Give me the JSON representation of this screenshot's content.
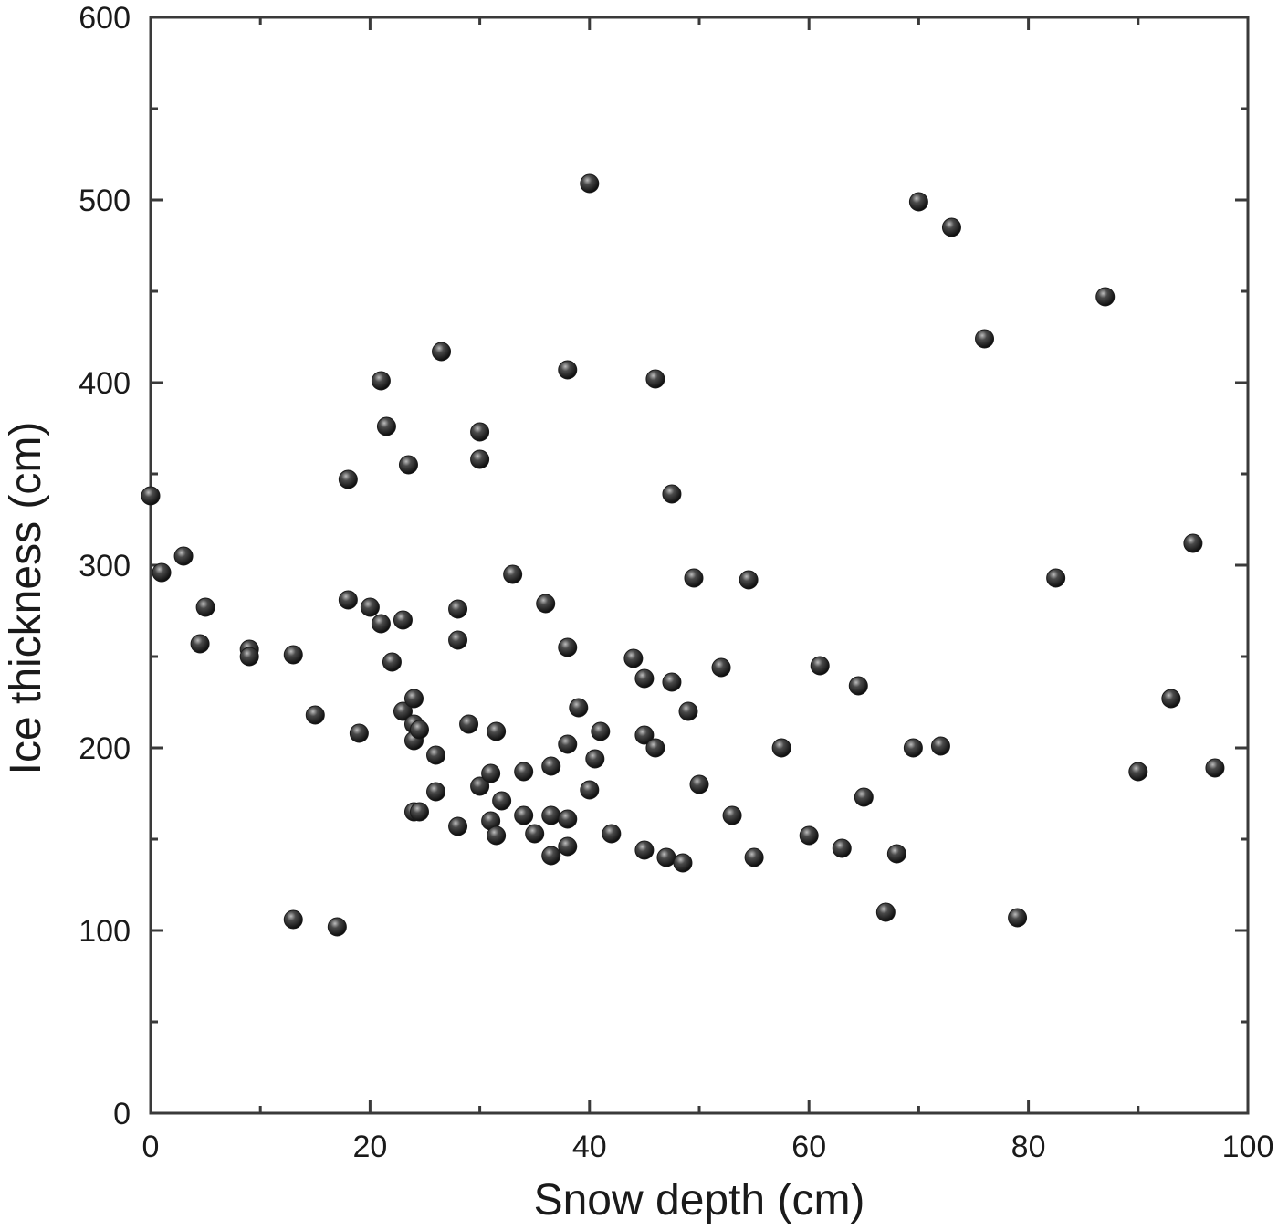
{
  "chart_data": {
    "type": "scatter",
    "title": "",
    "xlabel": "Snow depth (cm)",
    "ylabel": "Ice thickness (cm)",
    "xlim": [
      0,
      100
    ],
    "ylim": [
      0,
      600
    ],
    "x_ticks": [
      0,
      20,
      40,
      60,
      80,
      100
    ],
    "y_ticks": [
      0,
      100,
      200,
      300,
      400,
      500,
      600
    ],
    "x_tick_labels": [
      "0",
      "20",
      "40",
      "60",
      "80",
      "100"
    ],
    "y_tick_labels": [
      "0",
      "100",
      "200",
      "300",
      "400",
      "500",
      "600"
    ],
    "grid": false,
    "marker_color": "#1a1a1a",
    "series": [
      {
        "points": [
          [
            0,
            338
          ],
          [
            1,
            296
          ],
          [
            3,
            305
          ],
          [
            5,
            277
          ],
          [
            4.5,
            257
          ],
          [
            9,
            254
          ],
          [
            9,
            250
          ],
          [
            13,
            251
          ],
          [
            13,
            106
          ],
          [
            15,
            218
          ],
          [
            17,
            102
          ],
          [
            18,
            281
          ],
          [
            18,
            347
          ],
          [
            19,
            208
          ],
          [
            20,
            277
          ],
          [
            21,
            401
          ],
          [
            21,
            268
          ],
          [
            21.5,
            376
          ],
          [
            22,
            247
          ],
          [
            23,
            270
          ],
          [
            23,
            220
          ],
          [
            23.5,
            355
          ],
          [
            24,
            227
          ],
          [
            24,
            213
          ],
          [
            24,
            204
          ],
          [
            24.5,
            210
          ],
          [
            24,
            165
          ],
          [
            24.5,
            165
          ],
          [
            26,
            196
          ],
          [
            26,
            176
          ],
          [
            26.5,
            417
          ],
          [
            28,
            276
          ],
          [
            28,
            259
          ],
          [
            28,
            157
          ],
          [
            29,
            213
          ],
          [
            30,
            373
          ],
          [
            30,
            358
          ],
          [
            30,
            179
          ],
          [
            31,
            186
          ],
          [
            31,
            160
          ],
          [
            31.5,
            209
          ],
          [
            31.5,
            152
          ],
          [
            32,
            171
          ],
          [
            33,
            295
          ],
          [
            34,
            187
          ],
          [
            34,
            163
          ],
          [
            35,
            153
          ],
          [
            36,
            279
          ],
          [
            36.5,
            190
          ],
          [
            36.5,
            163
          ],
          [
            36.5,
            141
          ],
          [
            38,
            407
          ],
          [
            38,
            255
          ],
          [
            38,
            202
          ],
          [
            38,
            161
          ],
          [
            38,
            146
          ],
          [
            39,
            222
          ],
          [
            40,
            509
          ],
          [
            40,
            177
          ],
          [
            40.5,
            194
          ],
          [
            41,
            209
          ],
          [
            42,
            153
          ],
          [
            44,
            249
          ],
          [
            45,
            238
          ],
          [
            45,
            207
          ],
          [
            45,
            144
          ],
          [
            46,
            402
          ],
          [
            46,
            200
          ],
          [
            47,
            140
          ],
          [
            47.5,
            339
          ],
          [
            47.5,
            236
          ],
          [
            48.5,
            137
          ],
          [
            49,
            220
          ],
          [
            49.5,
            293
          ],
          [
            50,
            180
          ],
          [
            52,
            244
          ],
          [
            53,
            163
          ],
          [
            54.5,
            292
          ],
          [
            55,
            140
          ],
          [
            57.5,
            200
          ],
          [
            60,
            152
          ],
          [
            61,
            245
          ],
          [
            63,
            145
          ],
          [
            64.5,
            234
          ],
          [
            65,
            173
          ],
          [
            67,
            110
          ],
          [
            68,
            142
          ],
          [
            69.5,
            200
          ],
          [
            70,
            499
          ],
          [
            72,
            201
          ],
          [
            73,
            485
          ],
          [
            76,
            424
          ],
          [
            79,
            107
          ],
          [
            82.5,
            293
          ],
          [
            87,
            447
          ],
          [
            90,
            187
          ],
          [
            93,
            227
          ],
          [
            95,
            312
          ],
          [
            97,
            189
          ]
        ]
      }
    ]
  }
}
